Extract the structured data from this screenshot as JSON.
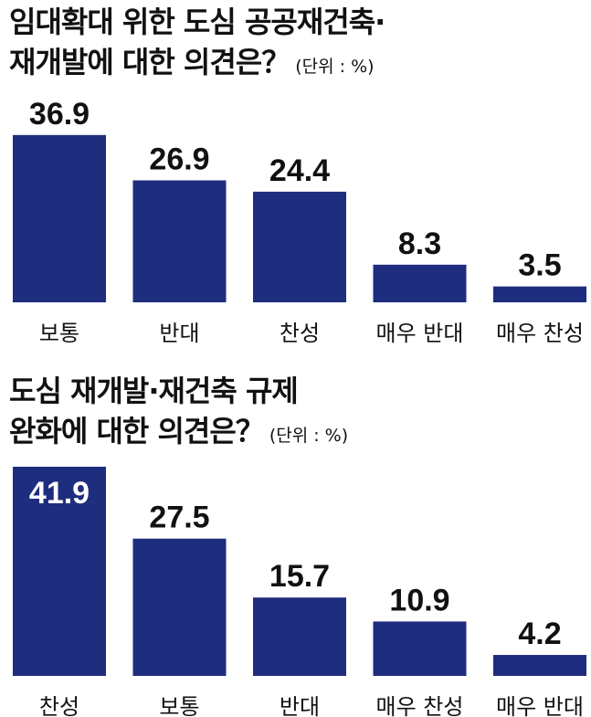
{
  "colors": {
    "bar": "#1f2d7e",
    "text": "#111111",
    "inner_label": "#ffffff",
    "axis": "#222222"
  },
  "chart_data": [
    {
      "type": "bar",
      "title_line1": "임대확대 위한 도심 공공재건축·",
      "title_line2": "재개발에 대한 의견은？",
      "unit": "(단위 : %)",
      "categories": [
        "보통",
        "반대",
        "찬성",
        "매우 반대",
        "매우 찬성"
      ],
      "values": [
        36.9,
        26.9,
        24.4,
        8.3,
        3.5
      ],
      "value_labels": [
        "36.9",
        "26.9",
        "24.4",
        "8.3",
        "3.5"
      ],
      "ylim": [
        0,
        41.9
      ]
    },
    {
      "type": "bar",
      "title_line1": "도심 재개발·재건축 규제",
      "title_line2": "완화에 대한 의견은？",
      "unit": "(단위 : %)",
      "categories": [
        "찬성",
        "보통",
        "반대",
        "매우 찬성",
        "매우 반대"
      ],
      "values": [
        41.9,
        27.5,
        15.7,
        10.9,
        4.2
      ],
      "value_labels": [
        "41.9",
        "27.5",
        "15.7",
        "10.9",
        "4.2"
      ],
      "ylim": [
        0,
        41.9
      ]
    }
  ]
}
